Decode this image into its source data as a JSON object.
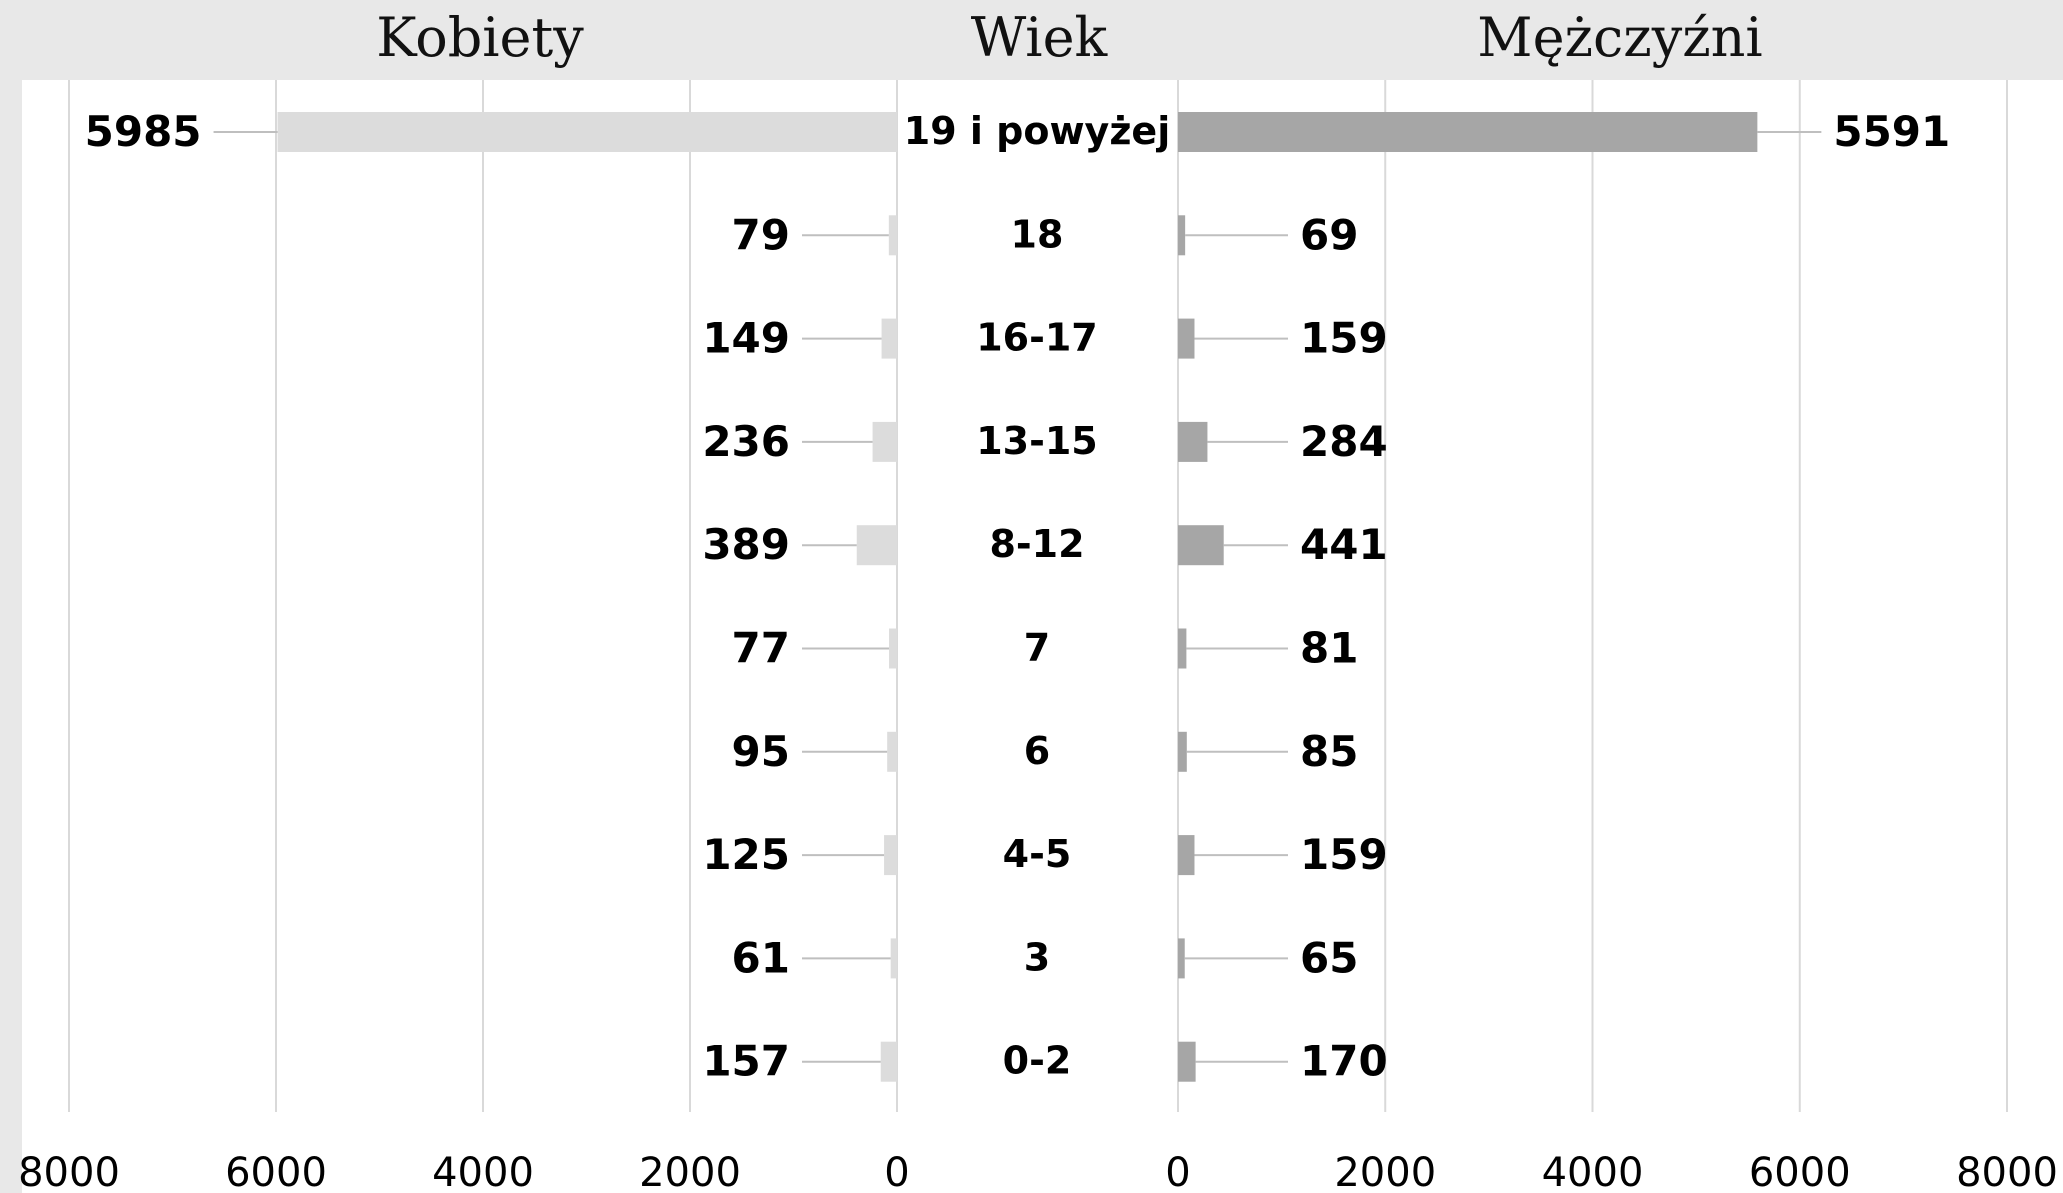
{
  "headers": {
    "left": "Kobiety",
    "center": "Wiek",
    "right": "Mężczyźni"
  },
  "colors": {
    "women_bar": "#dcdcdc",
    "men_bar": "#a6a6a6",
    "grid": "#d9d9d9",
    "background": "#e8e8e8",
    "plot_background": "#ffffff"
  },
  "chart_data": {
    "type": "bar",
    "orientation": "horizontal",
    "layout": "population-pyramid",
    "categories": [
      "19 i powyżej",
      "18",
      "16-17",
      "13-15",
      "8-12",
      "7",
      "6",
      "4-5",
      "3",
      "0-2"
    ],
    "series": [
      {
        "name": "Kobiety",
        "values": [
          5985,
          79,
          149,
          236,
          389,
          77,
          95,
          125,
          61,
          157
        ]
      },
      {
        "name": "Mężczyźni",
        "values": [
          5591,
          69,
          159,
          284,
          441,
          81,
          85,
          159,
          65,
          170
        ]
      }
    ],
    "xlim": [
      0,
      8000
    ],
    "x_ticks": [
      "8000",
      "6000",
      "4000",
      "2000",
      "0"
    ],
    "x_ticks_right": [
      "0",
      "2000",
      "4000",
      "6000",
      "8000"
    ],
    "grid": true,
    "data_labels": true
  }
}
